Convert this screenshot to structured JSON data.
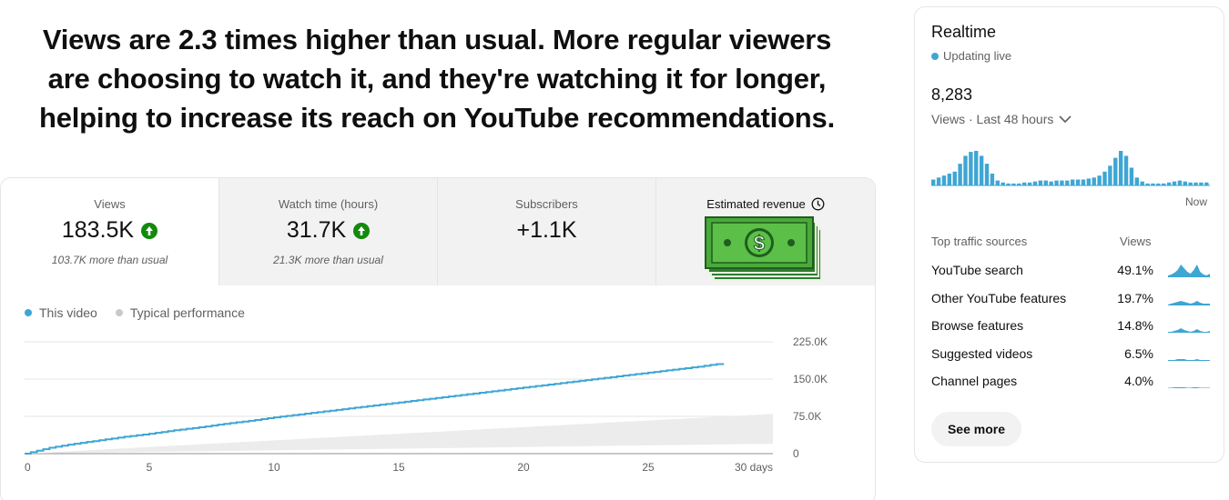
{
  "headline": "Views are 2.3 times higher than usual. More regular viewers are choosing to watch it, and they're watching it for longer, helping to increase its reach on YouTube recommendations.",
  "metrics": [
    {
      "label": "Views",
      "value": "183.5K",
      "note": "103.7K more than usual",
      "trend": "up"
    },
    {
      "label": "Watch time (hours)",
      "value": "31.7K",
      "note": "21.3K more than usual",
      "trend": "up"
    },
    {
      "label": "Subscribers",
      "value": "+1.1K",
      "note": ""
    },
    {
      "label": "Estimated revenue",
      "icon": "clock-icon",
      "image": "cash-icon"
    }
  ],
  "legend": {
    "this_video": "This video",
    "typical": "Typical performance"
  },
  "colors": {
    "accent": "#3ea6d3",
    "typical": "#c9c9c9",
    "up": "#128a0c",
    "cash": "#2e8b2e"
  },
  "chart_data": {
    "type": "line",
    "x_ticks": [
      "0",
      "5",
      "10",
      "15",
      "20",
      "25",
      "30 days"
    ],
    "y_ticks": [
      "225.0K",
      "150.0K",
      "75.0K",
      "0"
    ],
    "ylim": [
      0,
      225000
    ],
    "xlim": [
      0,
      30
    ],
    "series": [
      {
        "name": "This video",
        "x": [
          0,
          1,
          2,
          3,
          4,
          5,
          6,
          7,
          8,
          9,
          10,
          11,
          12,
          13,
          14,
          15,
          16,
          17,
          18,
          19,
          20,
          21,
          22,
          23,
          24,
          25,
          26,
          27,
          28
        ],
        "values": [
          0,
          12000,
          20000,
          27000,
          34000,
          40000,
          47000,
          53000,
          60000,
          66000,
          73000,
          79000,
          85000,
          91000,
          97000,
          103000,
          109000,
          115000,
          121000,
          127000,
          133000,
          139000,
          145000,
          151000,
          157000,
          163000,
          169000,
          175000,
          182000
        ]
      },
      {
        "name": "Typical performance",
        "band_x": [
          0,
          30
        ],
        "band_low": [
          0,
          20000
        ],
        "band_high": [
          0,
          80000
        ]
      }
    ]
  },
  "realtime": {
    "title": "Realtime",
    "live": "Updating live",
    "count": "8,283",
    "range": "Views · Last 48 hours",
    "now": "Now",
    "bars": [
      6,
      8,
      10,
      12,
      14,
      22,
      30,
      34,
      35,
      30,
      22,
      12,
      5,
      3,
      2,
      2,
      2,
      3,
      3,
      4,
      5,
      5,
      4,
      5,
      5,
      5,
      6,
      6,
      6,
      7,
      8,
      10,
      14,
      20,
      28,
      35,
      30,
      18,
      8,
      4,
      2,
      2,
      2,
      2,
      3,
      4,
      5,
      4,
      3,
      3,
      3,
      3
    ]
  },
  "traffic": {
    "header_name": "Top traffic sources",
    "header_views": "Views",
    "rows": [
      {
        "name": "YouTube search",
        "pct": "49.1%",
        "spark": [
          2,
          3,
          5,
          8,
          14,
          10,
          6,
          4,
          8,
          14,
          6,
          3,
          2,
          4
        ]
      },
      {
        "name": "Other YouTube features",
        "pct": "19.7%",
        "spark": [
          1,
          2,
          3,
          4,
          5,
          4,
          3,
          2,
          3,
          5,
          3,
          2,
          2,
          2
        ]
      },
      {
        "name": "Browse features",
        "pct": "14.8%",
        "spark": [
          1,
          1,
          2,
          3,
          5,
          3,
          2,
          1,
          2,
          4,
          2,
          1,
          1,
          2
        ]
      },
      {
        "name": "Suggested videos",
        "pct": "6.5%",
        "spark": [
          1,
          1,
          1,
          2,
          2,
          2,
          1,
          1,
          1,
          2,
          1,
          1,
          1,
          1
        ]
      },
      {
        "name": "Channel pages",
        "pct": "4.0%",
        "spark": [
          0.5,
          0.5,
          1,
          1,
          1,
          1,
          0.5,
          0.5,
          1,
          1,
          0.5,
          0.5,
          0.5,
          0.5
        ]
      }
    ],
    "see_more": "See more"
  }
}
